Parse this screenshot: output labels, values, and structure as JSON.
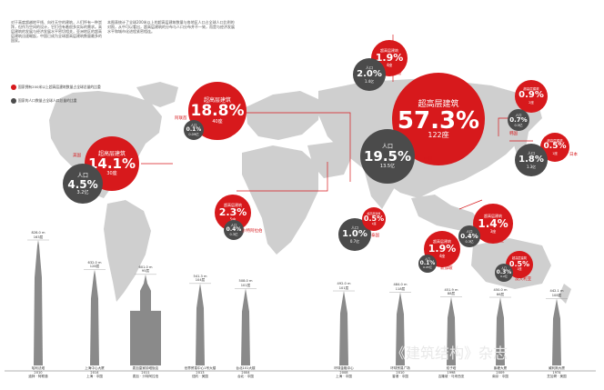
{
  "intro": {
    "left": "对于高度超越地平线、向往天空的建筑，人们怀有一种崇拜，但作为空间的设计，它们也有着很多实际的需求。高层建筑的发展与经济发展水平密切相关，亚洲地区的超高层建筑迅速崛起，中国已成为全球超高层建筑数量最多的国家。",
    "right": "本图表统计了全球200米以上的超高层建筑数量与各地区人口占全球人口比例的对照，从中可以看出，超高层建筑的分布与人口分布并不一致，而是与经济发展水平和城市化进程紧密相连。"
  },
  "legend": {
    "red": "国家拥有200米以上超高层建筑数量占全球总量的比重",
    "grey": "国家的人口数量占全球人口总量的比重"
  },
  "circles": {
    "china_sky": {
      "label": "超高层建筑",
      "value": "57.3%",
      "count": "122座"
    },
    "china_pop": {
      "label": "人口",
      "value": "19.5%",
      "count": "13.5亿"
    },
    "china_loc": "中国",
    "arab_sky": {
      "label": "超高层建筑",
      "value": "18.8%",
      "count": "40座"
    },
    "arab_loc": "阿联酋",
    "arab_pop": {
      "label": "人口",
      "value": "0.1%",
      "count": "0.09亿"
    },
    "usa_sky": {
      "label": "超高层建筑",
      "value": "14.1%",
      "count": "30座"
    },
    "usa_loc": "美国",
    "usa_pop": {
      "label": "人口",
      "value": "4.5%",
      "count": "3.2亿"
    },
    "russia_sky": {
      "label": "超高层建筑",
      "value": "1.9%",
      "count": "4座"
    },
    "russia_loc": "俄罗斯",
    "russia_pop": {
      "label": "人口",
      "value": "2.0%",
      "count": "1.4亿"
    },
    "saudi_sky": {
      "label": "超高层建筑",
      "value": "2.3%",
      "count": "5座"
    },
    "saudi_loc": "沙特阿拉伯",
    "saudi_pop": {
      "label": "人口",
      "value": "0.4%",
      "count": "0.3亿"
    },
    "korea_sky": {
      "label": "超高层建筑",
      "value": "0.9%",
      "count": "2座"
    },
    "korea_loc": "韩国",
    "korea_pop": {
      "label": "人口",
      "value": "0.7%",
      "count": "0.5亿"
    },
    "japan_sky": {
      "label": "超高层建筑",
      "value": "0.5%",
      "count": "1座"
    },
    "japan_loc": "日本",
    "japan_pop": {
      "label": "人口",
      "value": "1.8%",
      "count": "1.3亿"
    },
    "thai_sky": {
      "label": "超高层建筑",
      "value": "0.5%",
      "count": "1座"
    },
    "thai_loc": "泰国",
    "thai_pop": {
      "label": "人口",
      "value": "1.0%",
      "count": "0.7亿"
    },
    "malay_sky": {
      "label": "超高层建筑",
      "value": "1.4%",
      "count": "3座"
    },
    "malay_loc": "马来西亚",
    "malay_pop": {
      "label": "人口",
      "value": "0.4%",
      "count": "0.3亿"
    },
    "sing_sky": {
      "label": "超高层建筑",
      "value": "1.9%",
      "count": "4座"
    },
    "sing_loc": "新加坡",
    "sing_pop": {
      "label": "人口",
      "value": "0.1%",
      "count": "0.05亿"
    },
    "aus_sky": {
      "label": "超高层建筑",
      "value": "0.5%",
      "count": "1座"
    },
    "aus_loc": "澳大利亚",
    "aus_pop": {
      "label": "人口",
      "value": "0.3%",
      "count": "0.2亿"
    }
  },
  "buildings": [
    {
      "height": "828.0 m",
      "floors": "163层",
      "name": "哈利法塔",
      "year": "2010",
      "place": "迪拜 · 阿联酋",
      "h_units": 828
    },
    {
      "height": "632.0 m",
      "floors": "128层",
      "name": "上海中心大厦",
      "year": "2014",
      "place": "上海 · 中国",
      "h_units": 632
    },
    {
      "height": "601.0 m",
      "floors": "95层",
      "name": "麦加皇家钟塔饭店",
      "year": "2011",
      "place": "麦加 · 沙特阿拉伯",
      "h_units": 601
    },
    {
      "height": "541.3 m",
      "floors": "104层",
      "name": "世界贸易中心1号大楼",
      "year": "2013",
      "place": "纽约 · 美国",
      "h_units": 541
    },
    {
      "height": "508.0 m",
      "floors": "101层",
      "name": "台北101大楼",
      "year": "2004",
      "place": "台北 · 中国",
      "h_units": 508
    },
    {
      "height": "492.0 m",
      "floors": "101层",
      "name": "环球金融中心",
      "year": "2008",
      "place": "上海 · 中国",
      "h_units": 492
    },
    {
      "height": "484.0 m",
      "floors": "118层",
      "name": "环球贸易广场",
      "year": "2010",
      "place": "香港 · 中国",
      "h_units": 484
    },
    {
      "height": "451.9 m",
      "floors": "88层",
      "name": "双子塔",
      "year": "1998",
      "place": "吉隆坡 · 马来西亚",
      "h_units": 452
    },
    {
      "height": "450.0 m",
      "floors": "66层",
      "name": "紫峰大厦",
      "year": "2009",
      "place": "南京 · 中国",
      "h_units": 450
    },
    {
      "height": "442.1 m",
      "floors": "108层",
      "name": "威利斯大厦",
      "year": "1974",
      "place": "芝加哥 · 美国",
      "h_units": 442
    }
  ],
  "watermark": "《建筑结构》杂志",
  "colors": {
    "red": "#d7191c",
    "grey": "#4b4b4b",
    "map": "#cfcfcf"
  }
}
